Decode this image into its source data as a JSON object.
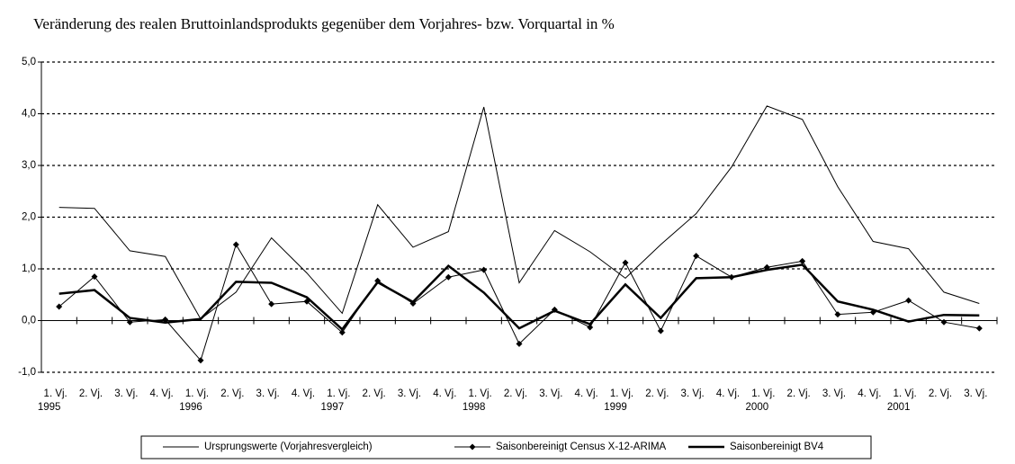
{
  "chart_data": {
    "type": "line",
    "title": "Veränderung des realen Bruttoinlandsprodukts gegenüber dem Vorjahres- bzw. Vorquartal in %",
    "categories": [
      "1. Vj.",
      "2. Vj.",
      "3. Vj.",
      "4. Vj.",
      "1. Vj.",
      "2. Vj.",
      "3. Vj.",
      "4. Vj.",
      "1. Vj.",
      "2. Vj.",
      "3. Vj.",
      "4. Vj.",
      "1. Vj.",
      "2. Vj.",
      "3. Vj.",
      "4. Vj.",
      "1. Vj.",
      "2. Vj.",
      "3. Vj.",
      "4. Vj.",
      "1. Vj.",
      "2. Vj.",
      "3. Vj.",
      "4. Vj.",
      "1. Vj.",
      "2. Vj.",
      "3. Vj."
    ],
    "years": [
      "1995",
      null,
      null,
      null,
      "1996",
      null,
      null,
      null,
      "1997",
      null,
      null,
      null,
      "1998",
      null,
      null,
      null,
      "1999",
      null,
      null,
      null,
      "2000",
      null,
      null,
      null,
      "2001",
      null,
      null
    ],
    "series": [
      {
        "name": "Ursprungswerte (Vorjahresvergleich)",
        "color": "#000000",
        "style": "thin",
        "values": [
          2.19,
          2.17,
          1.35,
          1.24,
          0.03,
          0.55,
          1.6,
          0.92,
          0.14,
          2.24,
          1.42,
          1.72,
          4.13,
          0.73,
          1.74,
          1.33,
          0.82,
          1.47,
          2.07,
          2.97,
          4.15,
          3.89,
          2.59,
          1.53,
          1.39,
          0.55,
          0.33
        ]
      },
      {
        "name": "Saisonbereinigt Census X-12-ARIMA",
        "color": "#000000",
        "style": "marker",
        "values": [
          0.27,
          0.85,
          -0.03,
          0.02,
          -0.77,
          1.47,
          0.32,
          0.37,
          -0.23,
          0.77,
          0.33,
          0.84,
          0.98,
          -0.45,
          0.21,
          -0.13,
          1.12,
          -0.2,
          1.25,
          0.84,
          1.03,
          1.15,
          0.12,
          0.16,
          0.39,
          -0.03,
          -0.15
        ]
      },
      {
        "name": "Saisonbereinigt BV4",
        "color": "#000000",
        "style": "thick",
        "values": [
          0.52,
          0.59,
          0.05,
          -0.04,
          0.03,
          0.75,
          0.73,
          0.45,
          -0.17,
          0.74,
          0.36,
          1.06,
          0.54,
          -0.15,
          0.19,
          -0.07,
          0.7,
          0.05,
          0.82,
          0.84,
          0.98,
          1.08,
          0.37,
          0.21,
          -0.02,
          0.11,
          0.1
        ]
      }
    ],
    "ylim": [
      -1,
      5
    ],
    "yticks": [
      {
        "value": -1,
        "label": "-1,0"
      },
      {
        "value": 0,
        "label": "0,0"
      },
      {
        "value": 1,
        "label": "1,0"
      },
      {
        "value": 2,
        "label": "2,0"
      },
      {
        "value": 3,
        "label": "3,0"
      },
      {
        "value": 4,
        "label": "4,0"
      },
      {
        "value": 5,
        "label": "5,0"
      }
    ],
    "grid": true
  }
}
